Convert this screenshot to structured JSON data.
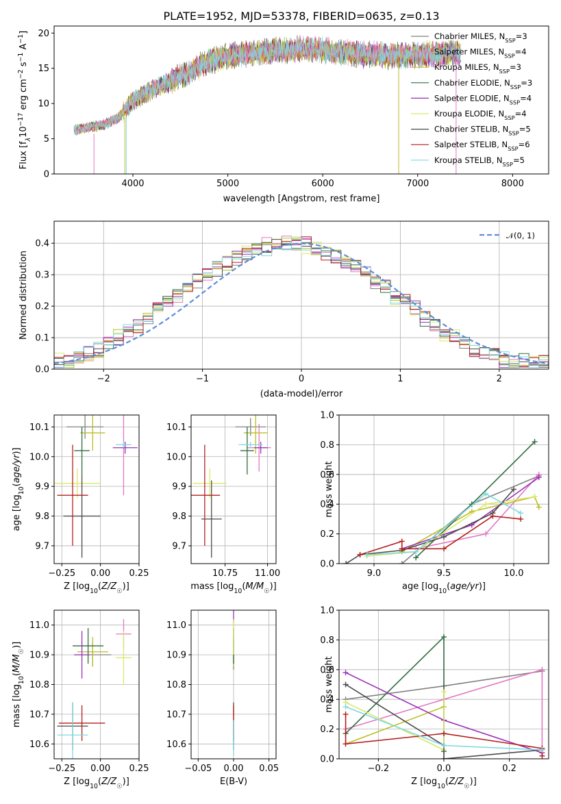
{
  "colors": {
    "palette": [
      "#808080",
      "#e377c2",
      "#bcbd22",
      "#2f6b3c",
      "#9b2fb6",
      "#dbe86a",
      "#4a4a4a",
      "#b51c1c",
      "#7fd8e0"
    ],
    "accents": [
      "#6a9bd8",
      "#e8822c"
    ],
    "normal_curve": "#5b8ed6"
  },
  "chart_data": [
    {
      "id": "spectrum",
      "type": "line",
      "title": "PLATE=1952, MJD=53378, FIBERID=0635, z=0.13",
      "xlabel": "wavelength [Angstrom, rest frame]",
      "ylabel": "Flux [f_λ10^-17 erg cm^-2 s^-1 A^-1]",
      "xlim": [
        3170,
        8380
      ],
      "ylim": [
        0,
        21
      ],
      "xticks": [
        4000,
        5000,
        6000,
        7000,
        8000
      ],
      "yticks": [
        0,
        5,
        10,
        15,
        20
      ],
      "grid": false,
      "legend_position": "top-right",
      "continuum": {
        "x": [
          3380,
          3500,
          3700,
          3850,
          4000,
          4200,
          4400,
          4600,
          4800,
          5000,
          5200,
          5500,
          5800,
          6100,
          6400,
          6700,
          7000,
          7300,
          7450
        ],
        "y": [
          6.3,
          6.5,
          7.0,
          8.0,
          10.3,
          12.0,
          13.2,
          14.5,
          16.0,
          16.8,
          17.0,
          17.5,
          17.8,
          17.4,
          17.0,
          16.8,
          16.9,
          17.1,
          17.2
        ]
      },
      "series": [
        {
          "name": "Chabrier MILES, N_SSP=3"
        },
        {
          "name": "Salpeter MILES, N_SSP=4"
        },
        {
          "name": "Kroupa MILES, N_SSP=3"
        },
        {
          "name": "Chabrier ELODIE, N_SSP=3"
        },
        {
          "name": "Salpeter ELODIE, N_SSP=4"
        },
        {
          "name": "Kroupa ELODIE, N_SSP=4"
        },
        {
          "name": "Chabrier STELIB, N_SSP=5"
        },
        {
          "name": "Salpeter STELIB, N_SSP=6"
        },
        {
          "name": "Kroupa STELIB, N_SSP=5"
        }
      ]
    },
    {
      "id": "residuals",
      "type": "line",
      "xlabel": "(data-model)/error",
      "ylabel": "Normed distribution",
      "xlim": [
        -2.5,
        2.5
      ],
      "ylim": [
        0,
        0.47
      ],
      "xticks": [
        -2,
        -1,
        0,
        1,
        2
      ],
      "yticks": [
        0.0,
        0.1,
        0.2,
        0.3,
        0.4
      ],
      "grid": true,
      "legend_position": "top-right",
      "legend": "𝒩(0, 1)",
      "bin_width": 0.1,
      "series": [
        {
          "name": "",
          "values": [
            0.02,
            0.03,
            0.04,
            0.05,
            0.06,
            0.08,
            0.1,
            0.12,
            0.14,
            0.16,
            0.19,
            0.21,
            0.23,
            0.26,
            0.28,
            0.3,
            0.32,
            0.34,
            0.35,
            0.37,
            0.38,
            0.39,
            0.4,
            0.4,
            0.4,
            0.39,
            0.38,
            0.37,
            0.35,
            0.34,
            0.32,
            0.3,
            0.28,
            0.26,
            0.23,
            0.21,
            0.19,
            0.16,
            0.14,
            0.12,
            0.1,
            0.08,
            0.06,
            0.05,
            0.04,
            0.03,
            0.02,
            0.02,
            0.02,
            0.02
          ]
        }
      ]
    },
    {
      "id": "z-age",
      "type": "scatter",
      "xlabel": "Z [log10(Z/Z☉)]",
      "ylabel": "age [log10(age/yr)]",
      "xlim": [
        -0.3,
        0.25
      ],
      "ylim": [
        9.64,
        10.14
      ],
      "xticks": [
        -0.25,
        0.0,
        0.25
      ],
      "xtick_labels": [
        "−0.25",
        "0.00",
        "0.25"
      ],
      "yticks": [
        9.7,
        9.8,
        9.9,
        10.0,
        10.1
      ],
      "grid": true,
      "points": [
        {
          "x": -0.1,
          "y": 10.1,
          "xerr": 0.12,
          "yerr": 0.04
        },
        {
          "x": 0.15,
          "y": 10.03,
          "xerr": 0.02,
          "yerr": 0.16
        },
        {
          "x": -0.05,
          "y": 10.08,
          "xerr": 0.08,
          "yerr": 0.06
        },
        {
          "x": -0.12,
          "y": 10.02,
          "xerr": 0.05,
          "yerr": 0.08
        },
        {
          "x": 0.16,
          "y": 10.03,
          "xerr": 0.08,
          "yerr": 0.02
        },
        {
          "x": -0.15,
          "y": 9.91,
          "xerr": 0.15,
          "yerr": 0.05
        },
        {
          "x": -0.12,
          "y": 9.8,
          "xerr": 0.12,
          "yerr": 0.14
        },
        {
          "x": -0.18,
          "y": 9.87,
          "xerr": 0.1,
          "yerr": 0.17
        },
        {
          "x": 0.15,
          "y": 10.04,
          "xerr": 0.05,
          "yerr": 0.01
        }
      ]
    },
    {
      "id": "mass-age",
      "type": "scatter",
      "xlabel": "mass [log10(M/M☉)]",
      "ylabel": "",
      "xlim": [
        10.55,
        11.05
      ],
      "ylim": [
        9.64,
        10.14
      ],
      "xticks": [
        10.75,
        11.0
      ],
      "xtick_labels": [
        "10.75",
        "11.00"
      ],
      "yticks": [
        9.7,
        9.8,
        9.9,
        10.0,
        10.1
      ],
      "grid": true,
      "points": [
        {
          "x": 10.9,
          "y": 10.1,
          "xerr": 0.09,
          "yerr": 0.03
        },
        {
          "x": 10.95,
          "y": 10.03,
          "xerr": 0.07,
          "yerr": 0.08
        },
        {
          "x": 10.93,
          "y": 10.08,
          "xerr": 0.07,
          "yerr": 0.07
        },
        {
          "x": 10.88,
          "y": 10.02,
          "xerr": 0.04,
          "yerr": 0.08
        },
        {
          "x": 10.96,
          "y": 10.03,
          "xerr": 0.04,
          "yerr": 0.02
        },
        {
          "x": 10.66,
          "y": 9.91,
          "xerr": 0.1,
          "yerr": 0.05
        },
        {
          "x": 10.67,
          "y": 9.79,
          "xerr": 0.06,
          "yerr": 0.13
        },
        {
          "x": 10.63,
          "y": 9.87,
          "xerr": 0.09,
          "yerr": 0.17
        },
        {
          "x": 10.9,
          "y": 10.04,
          "xerr": 0.07,
          "yerr": 0.01
        }
      ]
    },
    {
      "id": "age-weight",
      "type": "line",
      "xlabel": "age [log10(age/yr)]",
      "ylabel": "mass weight",
      "xlim": [
        8.75,
        10.25
      ],
      "ylim": [
        0,
        1
      ],
      "xticks": [
        9.0,
        9.5,
        10.0
      ],
      "xtick_labels": [
        "9.0",
        "9.5",
        "10.0"
      ],
      "yticks": [
        0.0,
        0.2,
        0.4,
        0.6,
        0.8,
        1.0
      ],
      "grid": true,
      "series": [
        {
          "x": [
            9.2,
            9.7,
            10.18
          ],
          "y": [
            0.0,
            0.4,
            0.59
          ]
        },
        {
          "x": [
            9.3,
            9.8,
            10.18
          ],
          "y": [
            0.1,
            0.2,
            0.6
          ]
        },
        {
          "x": [
            9.2,
            9.7,
            10.15,
            10.18
          ],
          "y": [
            0.08,
            0.35,
            0.45,
            0.38
          ]
        },
        {
          "x": [
            9.3,
            9.7,
            10.15
          ],
          "y": [
            0.04,
            0.4,
            0.82
          ]
        },
        {
          "x": [
            9.2,
            9.7,
            10.18
          ],
          "y": [
            0.1,
            0.26,
            0.58
          ]
        },
        {
          "x": [
            8.95,
            9.3,
            9.8,
            10.15
          ],
          "y": [
            0.05,
            0.08,
            0.4,
            0.45
          ]
        },
        {
          "x": [
            8.8,
            8.9,
            9.2,
            9.5,
            9.85,
            10.0
          ],
          "y": [
            0.0,
            0.06,
            0.09,
            0.18,
            0.34,
            0.5
          ]
        },
        {
          "x": [
            8.9,
            9.2,
            9.2,
            9.5,
            9.85,
            10.05
          ],
          "y": [
            0.06,
            0.15,
            0.1,
            0.1,
            0.32,
            0.3
          ]
        },
        {
          "x": [
            8.95,
            9.3,
            9.8,
            10.05
          ],
          "y": [
            0.06,
            0.08,
            0.47,
            0.34
          ]
        }
      ]
    },
    {
      "id": "z-mass",
      "type": "scatter",
      "xlabel": "Z [log10(Z/Z☉)]",
      "ylabel": "mass [log10(M/M☉)]",
      "xlim": [
        -0.3,
        0.25
      ],
      "ylim": [
        10.55,
        11.05
      ],
      "xticks": [
        -0.25,
        0.0,
        0.25
      ],
      "xtick_labels": [
        "−0.25",
        "0.00",
        "0.25"
      ],
      "yticks": [
        10.6,
        10.7,
        10.8,
        10.9,
        11.0
      ],
      "grid": true,
      "points": [
        {
          "x": -0.05,
          "y": 10.9,
          "xerr": 0.12,
          "yerr": 0.04
        },
        {
          "x": 0.15,
          "y": 10.97,
          "xerr": 0.05,
          "yerr": 0.05
        },
        {
          "x": -0.05,
          "y": 10.91,
          "xerr": 0.1,
          "yerr": 0.05
        },
        {
          "x": -0.08,
          "y": 10.93,
          "xerr": 0.1,
          "yerr": 0.06
        },
        {
          "x": -0.12,
          "y": 10.9,
          "xerr": 0.05,
          "yerr": 0.08
        },
        {
          "x": 0.15,
          "y": 10.89,
          "xerr": 0.05,
          "yerr": 0.09
        },
        {
          "x": -0.18,
          "y": 10.66,
          "xerr": 0.1,
          "yerr": 0.08
        },
        {
          "x": -0.12,
          "y": 10.67,
          "xerr": 0.15,
          "yerr": 0.06
        },
        {
          "x": -0.18,
          "y": 10.63,
          "xerr": 0.1,
          "yerr": 0.11
        }
      ]
    },
    {
      "id": "ebv-mass",
      "type": "scatter",
      "xlabel": "E(B-V)",
      "ylabel": "",
      "xlim": [
        -0.06,
        0.06
      ],
      "ylim": [
        10.55,
        11.05
      ],
      "xticks": [
        -0.05,
        0.0,
        0.05
      ],
      "xtick_labels": [
        "−0.05",
        "0.00",
        "0.05"
      ],
      "yticks": [
        10.6,
        10.7,
        10.8,
        10.9,
        11.0
      ],
      "grid": true,
      "points": [
        {
          "x": 0,
          "y": 10.9,
          "xerr": 0,
          "yerr": 0.05
        },
        {
          "x": 0,
          "y": 10.97,
          "xerr": 0,
          "yerr": 0.05
        },
        {
          "x": 0,
          "y": 10.91,
          "xerr": 0,
          "yerr": 0.05
        },
        {
          "x": 0,
          "y": 10.93,
          "xerr": 0,
          "yerr": 0.06
        },
        {
          "x": 0,
          "y": 11.03,
          "xerr": 0,
          "yerr": 0.02
        },
        {
          "x": 0,
          "y": 10.96,
          "xerr": 0,
          "yerr": 0.06
        },
        {
          "x": 0,
          "y": 10.66,
          "xerr": 0,
          "yerr": 0.08
        },
        {
          "x": 0,
          "y": 10.67,
          "xerr": 0,
          "yerr": 0.06
        },
        {
          "x": 0,
          "y": 10.62,
          "xerr": 0,
          "yerr": 0.06
        }
      ]
    },
    {
      "id": "z-weight",
      "type": "line",
      "xlabel": "Z [log10(Z/Z☉)]",
      "ylabel": "mass weight",
      "xlim": [
        -0.32,
        0.32
      ],
      "ylim": [
        0,
        1
      ],
      "xticks": [
        -0.2,
        0.0,
        0.2
      ],
      "xtick_labels": [
        "−0.2",
        "0.0",
        "0.2"
      ],
      "yticks": [
        0.0,
        0.2,
        0.4,
        0.6,
        0.8,
        1.0
      ],
      "grid": true,
      "series": [
        {
          "x": [
            -0.3,
            0.0,
            0.3
          ],
          "y": [
            0.4,
            0.49,
            0.59
          ]
        },
        {
          "x": [
            -0.3,
            0.0,
            0.3,
            0.3
          ],
          "y": [
            0.2,
            0.4,
            0.6,
            0.02
          ]
        },
        {
          "x": [
            -0.3,
            0.0,
            0.0
          ],
          "y": [
            0.1,
            0.35,
            0.45
          ]
        },
        {
          "x": [
            -0.3,
            0.0,
            0.0
          ],
          "y": [
            0.17,
            0.82,
            0.05
          ]
        },
        {
          "x": [
            -0.3,
            0.0,
            0.3
          ],
          "y": [
            0.58,
            0.26,
            0.04
          ]
        },
        {
          "x": [
            -0.3,
            0.0,
            0.0
          ],
          "y": [
            0.38,
            0.06,
            0.45
          ]
        },
        {
          "x": [
            -0.3,
            0.0,
            0.0,
            0.3
          ],
          "y": [
            0.5,
            0.09,
            0.0,
            0.06
          ]
        },
        {
          "x": [
            -0.3,
            -0.3,
            0.0,
            0.3,
            0.3
          ],
          "y": [
            0.3,
            0.1,
            0.17,
            0.07,
            0.02
          ]
        },
        {
          "x": [
            -0.3,
            0.0,
            0.3
          ],
          "y": [
            0.35,
            0.09,
            0.06
          ]
        }
      ]
    }
  ]
}
